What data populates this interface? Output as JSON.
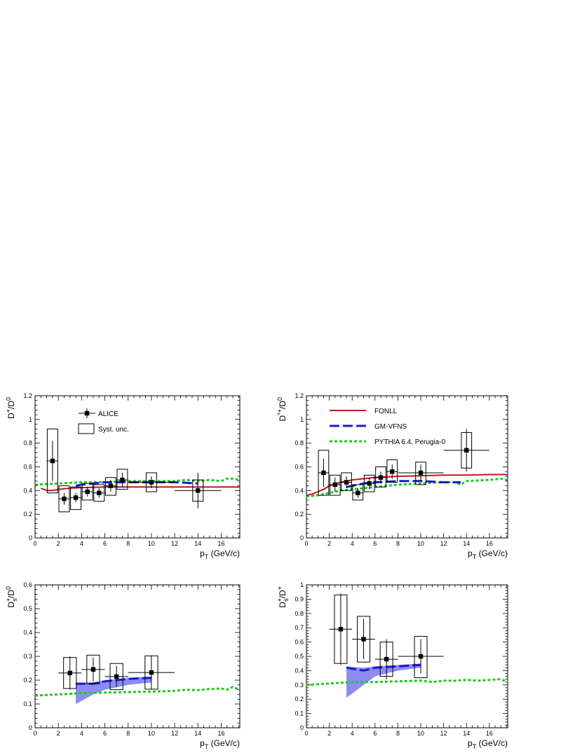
{
  "figure": {
    "legend_left": {
      "alice": "ALICE",
      "syst": "Syst. unc."
    },
    "legend_right": {
      "fonll": "FONLL",
      "gmvfns": "GM-VFNS",
      "pythia": "PYTHIA 6.4, Perugia-0"
    },
    "colors": {
      "fonll": "#c0171e",
      "gmvfns": "#1919d8",
      "gmvfns_band": "#8c8cf2",
      "pythia": "#1ec91e",
      "data": "#000000"
    }
  },
  "chart_data": [
    {
      "type": "scatter",
      "panel": "top-left",
      "ylabel_main": "D",
      "ylabel_sup1": "+",
      "ylabel_slash": "/D",
      "ylabel_sup2": "0",
      "xlabel_main": "p",
      "xlabel_sub": "T",
      "xlabel_unit": " (GeV/c)",
      "xlim": [
        0,
        17.6
      ],
      "ylim": [
        0,
        1.2
      ],
      "xticks": [
        0,
        2,
        4,
        6,
        8,
        10,
        12,
        14,
        16
      ],
      "yticks": [
        0,
        0.2,
        0.4,
        0.6,
        0.8,
        1,
        1.2
      ],
      "ytick_labels": [
        "0",
        "0.2",
        "0.4",
        "0.6",
        "0.8",
        "1",
        "1.2"
      ],
      "legend": "top-left",
      "data": {
        "x": [
          1.5,
          2.5,
          3.5,
          4.5,
          5.5,
          6.5,
          7.5,
          10,
          14
        ],
        "xerr": [
          0.5,
          0.5,
          0.5,
          0.5,
          0.5,
          0.5,
          0.5,
          2,
          2
        ],
        "y": [
          0.65,
          0.33,
          0.34,
          0.39,
          0.38,
          0.44,
          0.49,
          0.47,
          0.4
        ],
        "yerr": [
          0.17,
          0.05,
          0.04,
          0.04,
          0.04,
          0.05,
          0.06,
          0.05,
          0.15
        ],
        "syst_lo": [
          0.38,
          0.22,
          0.24,
          0.32,
          0.31,
          0.36,
          0.41,
          0.39,
          0.31
        ],
        "syst_hi": [
          0.92,
          0.44,
          0.43,
          0.46,
          0.45,
          0.51,
          0.58,
          0.55,
          0.49
        ],
        "syst_hw": 0.45
      },
      "fonll": {
        "x": [
          0.5,
          1,
          1.5,
          2,
          3,
          4,
          6,
          8,
          10,
          12,
          14,
          16,
          17.6
        ],
        "y": [
          0.42,
          0.4,
          0.4,
          0.41,
          0.42,
          0.425,
          0.43,
          0.43,
          0.43,
          0.43,
          0.43,
          0.43,
          0.43
        ]
      },
      "gmvfns": {
        "x": [
          3.5,
          4,
          5,
          6,
          8,
          10,
          12,
          14
        ],
        "y": [
          0.44,
          0.45,
          0.46,
          0.47,
          0.47,
          0.47,
          0.47,
          0.46
        ]
      },
      "pythia": {
        "x": [
          0,
          2,
          4,
          6,
          8,
          10,
          12,
          13,
          14,
          15,
          16,
          16.5,
          17,
          17.6
        ],
        "y": [
          0.45,
          0.46,
          0.47,
          0.47,
          0.48,
          0.48,
          0.48,
          0.49,
          0.48,
          0.49,
          0.48,
          0.5,
          0.5,
          0.49
        ]
      }
    },
    {
      "type": "scatter",
      "panel": "top-right",
      "ylabel_main": "D",
      "ylabel_sup1": "*+",
      "ylabel_slash": "/D",
      "ylabel_sup2": "0",
      "xlabel_main": "p",
      "xlabel_sub": "T",
      "xlabel_unit": " (GeV/c)",
      "xlim": [
        0,
        17.6
      ],
      "ylim": [
        0,
        1.2
      ],
      "xticks": [
        0,
        2,
        4,
        6,
        8,
        10,
        12,
        14,
        16
      ],
      "yticks": [
        0,
        0.2,
        0.4,
        0.6,
        0.8,
        1,
        1.2
      ],
      "ytick_labels": [
        "0",
        "0.2",
        "0.4",
        "0.6",
        "0.8",
        "1",
        "1.2"
      ],
      "legend": "top-left",
      "data": {
        "x": [
          1.5,
          2.5,
          3.5,
          4.5,
          5.5,
          6.5,
          7.5,
          10,
          14
        ],
        "xerr": [
          0.5,
          0.5,
          0.5,
          0.5,
          0.5,
          0.5,
          0.5,
          2,
          2
        ],
        "y": [
          0.55,
          0.45,
          0.47,
          0.38,
          0.46,
          0.51,
          0.56,
          0.55,
          0.74
        ],
        "yerr": [
          0.12,
          0.06,
          0.05,
          0.04,
          0.05,
          0.05,
          0.06,
          0.07,
          0.18
        ],
        "syst_lo": [
          0.36,
          0.36,
          0.4,
          0.32,
          0.39,
          0.43,
          0.47,
          0.45,
          0.59
        ],
        "syst_hi": [
          0.74,
          0.53,
          0.55,
          0.45,
          0.53,
          0.6,
          0.66,
          0.64,
          0.89
        ],
        "syst_hw": 0.45
      },
      "fonll": {
        "x": [
          0,
          0.5,
          1,
          1.5,
          2,
          3,
          4,
          6,
          8,
          10,
          12,
          14,
          16,
          17.6
        ],
        "y": [
          0.36,
          0.37,
          0.39,
          0.41,
          0.44,
          0.47,
          0.49,
          0.51,
          0.52,
          0.525,
          0.53,
          0.53,
          0.535,
          0.535
        ]
      },
      "gmvfns": {
        "x": [
          3.5,
          4,
          5,
          6,
          8,
          10,
          12,
          13.5
        ],
        "y": [
          0.43,
          0.44,
          0.46,
          0.47,
          0.48,
          0.48,
          0.47,
          0.47
        ]
      },
      "pythia": {
        "x": [
          0,
          1,
          2,
          3,
          4,
          5,
          6,
          8,
          10,
          12,
          13,
          13.5,
          14,
          16,
          17,
          17.6
        ],
        "y": [
          0.35,
          0.36,
          0.38,
          0.4,
          0.41,
          0.42,
          0.43,
          0.45,
          0.46,
          0.47,
          0.47,
          0.45,
          0.48,
          0.49,
          0.5,
          0.49
        ]
      }
    },
    {
      "type": "scatter",
      "panel": "bottom-left",
      "ylabel_main": "D",
      "ylabel_sup1": "+",
      "ylabel_sub1": "s",
      "ylabel_slash": "/D",
      "ylabel_sup2": "0",
      "xlabel_main": "p",
      "xlabel_sub": "T",
      "xlabel_unit": " (GeV/c)",
      "xlim": [
        0,
        17.6
      ],
      "ylim": [
        0,
        0.6
      ],
      "xticks": [
        0,
        2,
        4,
        6,
        8,
        10,
        12,
        14,
        16
      ],
      "yticks": [
        0,
        0.1,
        0.2,
        0.3,
        0.4,
        0.5,
        0.6
      ],
      "ytick_labels": [
        "0",
        "0.1",
        "0.2",
        "0.3",
        "0.4",
        "0.5",
        "0.6"
      ],
      "data": {
        "x": [
          3,
          5,
          7,
          10
        ],
        "xerr": [
          1,
          1,
          1,
          2
        ],
        "y": [
          0.23,
          0.245,
          0.215,
          0.232
        ],
        "yerr": [
          0.07,
          0.05,
          0.045,
          0.07
        ],
        "syst_lo": [
          0.165,
          0.185,
          0.16,
          0.162
        ],
        "syst_hi": [
          0.295,
          0.305,
          0.27,
          0.302
        ],
        "syst_hw": 0.55
      },
      "gmvfns": {
        "x": [
          3.5,
          5,
          6,
          8,
          10
        ],
        "y": [
          0.185,
          0.185,
          0.195,
          0.205,
          0.21
        ]
      },
      "gmvfns_band": {
        "x": [
          3.5,
          5,
          6,
          8,
          10
        ],
        "lo": [
          0.1,
          0.14,
          0.16,
          0.18,
          0.19
        ],
        "hi": [
          0.19,
          0.19,
          0.2,
          0.21,
          0.215
        ]
      },
      "pythia": {
        "x": [
          0,
          2,
          4,
          6,
          8,
          10,
          12,
          13,
          14,
          15,
          16,
          16.5,
          17,
          17.6
        ],
        "y": [
          0.135,
          0.14,
          0.145,
          0.148,
          0.15,
          0.152,
          0.155,
          0.16,
          0.158,
          0.163,
          0.165,
          0.16,
          0.172,
          0.158
        ]
      }
    },
    {
      "type": "scatter",
      "panel": "bottom-right",
      "ylabel_main": "D",
      "ylabel_sup1": "+",
      "ylabel_sub1": "s",
      "ylabel_slash": "/D",
      "ylabel_sup2": "+",
      "xlabel_main": "p",
      "xlabel_sub": "T",
      "xlabel_unit": " (GeV/c)",
      "xlim": [
        0,
        17.6
      ],
      "ylim": [
        0,
        1.0
      ],
      "xticks": [
        0,
        2,
        4,
        6,
        8,
        10,
        12,
        14,
        16
      ],
      "yticks": [
        0,
        0.1,
        0.2,
        0.3,
        0.4,
        0.5,
        0.6,
        0.7,
        0.8,
        0.9,
        1
      ],
      "ytick_labels": [
        "0",
        "0.1",
        "0.2",
        "0.3",
        "0.4",
        "0.5",
        "0.6",
        "0.7",
        "0.8",
        "0.9",
        "1"
      ],
      "data": {
        "x": [
          3,
          5,
          7,
          10
        ],
        "xerr": [
          1,
          1,
          1,
          2
        ],
        "y": [
          0.69,
          0.62,
          0.48,
          0.5
        ],
        "yerr": [
          0.25,
          0.14,
          0.14,
          0.12
        ],
        "syst_lo": [
          0.45,
          0.46,
          0.36,
          0.35
        ],
        "syst_hi": [
          0.93,
          0.78,
          0.6,
          0.64
        ],
        "syst_hw": 0.55
      },
      "gmvfns": {
        "x": [
          3.5,
          5,
          6,
          8,
          10
        ],
        "y": [
          0.42,
          0.4,
          0.42,
          0.43,
          0.44
        ]
      },
      "gmvfns_band": {
        "x": [
          3.5,
          5,
          6,
          8,
          10
        ],
        "lo": [
          0.21,
          0.3,
          0.36,
          0.4,
          0.42
        ],
        "hi": [
          0.43,
          0.42,
          0.43,
          0.44,
          0.45
        ]
      },
      "pythia": {
        "x": [
          0,
          2,
          4,
          6,
          8,
          10,
          11,
          12,
          13,
          14,
          15,
          16,
          17,
          17.6
        ],
        "y": [
          0.3,
          0.31,
          0.32,
          0.32,
          0.325,
          0.33,
          0.32,
          0.33,
          0.33,
          0.335,
          0.33,
          0.335,
          0.34,
          0.32
        ]
      }
    }
  ]
}
